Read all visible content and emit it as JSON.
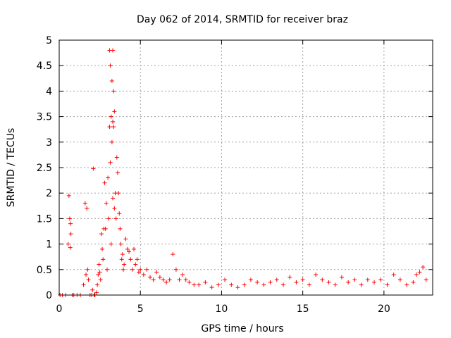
{
  "chart_data": {
    "type": "scatter",
    "title": "Day 062 of 2014, SRMTID for receiver braz",
    "xlabel": "GPS time / hours",
    "ylabel": "SRMTID / TECUs",
    "xlim": [
      0,
      23
    ],
    "ylim": [
      0,
      5
    ],
    "xticks": [
      0,
      5,
      10,
      15,
      20
    ],
    "xtick_labels": [
      "0",
      "5",
      "10",
      "15",
      "20"
    ],
    "yticks": [
      0,
      0.5,
      1,
      1.5,
      2,
      2.5,
      3,
      3.5,
      4,
      4.5,
      5
    ],
    "ytick_labels": [
      "0",
      "0.5",
      "1",
      "1.5",
      "2",
      "2.5",
      "3",
      "3.5",
      "4",
      "4.5",
      "5"
    ],
    "grid": true,
    "marker": "+",
    "color": "#ff0000",
    "series": [
      {
        "name": "SRMTID",
        "x": [
          0.05,
          0.2,
          0.4,
          0.55,
          0.6,
          0.65,
          0.68,
          0.7,
          0.72,
          0.8,
          0.9,
          1.1,
          1.3,
          1.5,
          1.6,
          1.65,
          1.7,
          1.75,
          1.8,
          1.9,
          2.0,
          2.05,
          2.1,
          2.15,
          2.2,
          2.3,
          2.35,
          2.4,
          2.45,
          2.5,
          2.55,
          2.6,
          2.65,
          2.7,
          2.75,
          2.8,
          2.85,
          2.9,
          2.95,
          3.0,
          3.05,
          3.1,
          3.1,
          3.15,
          3.15,
          3.2,
          3.2,
          3.25,
          3.25,
          3.3,
          3.3,
          3.3,
          3.35,
          3.35,
          3.4,
          3.4,
          3.45,
          3.5,
          3.55,
          3.6,
          3.65,
          3.7,
          3.75,
          3.8,
          3.85,
          3.9,
          3.95,
          4.0,
          4.1,
          4.2,
          4.3,
          4.4,
          4.5,
          4.6,
          4.7,
          4.8,
          4.9,
          5.0,
          5.2,
          5.4,
          5.6,
          5.8,
          6.0,
          6.2,
          6.4,
          6.6,
          6.8,
          7.0,
          7.2,
          7.4,
          7.6,
          7.8,
          8.0,
          8.3,
          8.6,
          9.0,
          9.4,
          9.8,
          10.2,
          10.6,
          11.0,
          11.4,
          11.8,
          12.2,
          12.6,
          13.0,
          13.4,
          13.8,
          14.2,
          14.6,
          15.0,
          15.4,
          15.8,
          16.2,
          16.6,
          17.0,
          17.4,
          17.8,
          18.2,
          18.6,
          19.0,
          19.4,
          19.8,
          20.2,
          20.6,
          21.0,
          21.4,
          21.8,
          22.0,
          22.2,
          22.4,
          22.6
        ],
        "y": [
          0,
          0,
          0,
          1.0,
          1.95,
          1.5,
          0.93,
          1.4,
          1.2,
          0,
          0,
          0,
          0,
          0.2,
          1.8,
          0.4,
          1.7,
          0.5,
          0.3,
          0,
          0,
          0.1,
          2.48,
          0,
          0,
          0.05,
          0.2,
          0.4,
          0.6,
          0.45,
          0.3,
          1.2,
          0.9,
          0.7,
          1.3,
          2.2,
          1.3,
          1.8,
          0.5,
          2.3,
          1.5,
          4.8,
          3.3,
          4.5,
          2.6,
          3.5,
          1.0,
          4.2,
          3.0,
          4.8,
          3.4,
          1.9,
          4.0,
          3.3,
          3.6,
          1.7,
          2.0,
          1.5,
          2.7,
          2.4,
          2.0,
          1.6,
          1.3,
          1.0,
          0.7,
          0.8,
          0.5,
          0.6,
          1.1,
          0.9,
          0.85,
          0.7,
          0.5,
          0.9,
          0.6,
          0.7,
          0.45,
          0.5,
          0.4,
          0.5,
          0.35,
          0.3,
          0.45,
          0.35,
          0.3,
          0.25,
          0.3,
          0.8,
          0.5,
          0.3,
          0.4,
          0.3,
          0.25,
          0.2,
          0.2,
          0.25,
          0.15,
          0.2,
          0.3,
          0.2,
          0.15,
          0.2,
          0.3,
          0.25,
          0.2,
          0.25,
          0.3,
          0.2,
          0.35,
          0.25,
          0.3,
          0.2,
          0.4,
          0.3,
          0.25,
          0.2,
          0.35,
          0.25,
          0.3,
          0.2,
          0.3,
          0.25,
          0.3,
          0.2,
          0.4,
          0.3,
          0.2,
          0.25,
          0.4,
          0.45,
          0.55,
          0.3
        ]
      }
    ]
  }
}
